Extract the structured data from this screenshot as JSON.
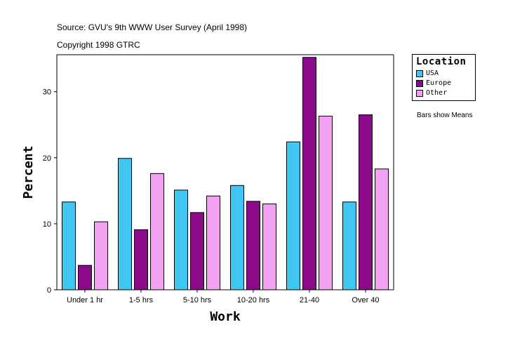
{
  "header": {
    "source": "Source: GVU's 9th WWW User Survey (April 1998)",
    "copyright": "Copyright 1998 GTRC"
  },
  "side_note": "Bars show Means",
  "legend": {
    "title": "Location",
    "items": [
      {
        "label": "USA",
        "color": "#3fc7f1"
      },
      {
        "label": "Europe",
        "color": "#8b0a8b"
      },
      {
        "label": "Other",
        "color": "#f2a0f2"
      }
    ]
  },
  "chart_data": {
    "type": "bar",
    "title": "",
    "xlabel": "Work",
    "ylabel": "Percent",
    "ylim": [
      0,
      35.6
    ],
    "yticks": [
      0,
      10,
      20,
      30
    ],
    "categories": [
      "Under 1 hr",
      "1-5 hrs",
      "5-10 hrs",
      "10-20 hrs",
      "21-40",
      "Over 40"
    ],
    "series": [
      {
        "name": "USA",
        "color": "#3fc7f1",
        "values": [
          13.3,
          19.9,
          15.1,
          15.8,
          22.4,
          13.3
        ]
      },
      {
        "name": "Europe",
        "color": "#8b0a8b",
        "values": [
          3.7,
          9.1,
          11.7,
          13.4,
          35.2,
          26.5
        ]
      },
      {
        "name": "Other",
        "color": "#f2a0f2",
        "values": [
          10.3,
          17.6,
          14.2,
          13.0,
          26.3,
          18.3
        ]
      }
    ]
  }
}
